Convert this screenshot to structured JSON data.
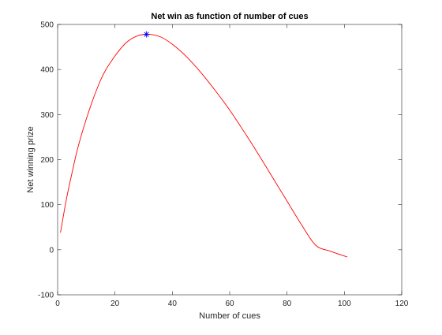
{
  "chart_data": {
    "type": "line",
    "title": "Net win as function of number of cues",
    "xlabel": "Number of cues",
    "ylabel": "Net winning prize",
    "xlim": [
      0,
      120
    ],
    "ylim": [
      -100,
      500
    ],
    "xticks": [
      0,
      20,
      40,
      60,
      80,
      100,
      120
    ],
    "yticks": [
      -100,
      0,
      100,
      200,
      300,
      400,
      500
    ],
    "xtick_labels": [
      "0",
      "20",
      "40",
      "60",
      "80",
      "100",
      "120"
    ],
    "ytick_labels": [
      "-100",
      "0",
      "100",
      "200",
      "300",
      "400",
      "500"
    ],
    "grid": false,
    "series": [
      {
        "color": "#ff0000",
        "x": [
          1,
          3,
          5,
          7,
          10,
          13,
          16,
          20,
          24,
          28,
          32,
          36,
          40,
          45,
          50,
          55,
          60,
          65,
          70,
          75,
          80,
          85,
          90,
          95,
          101
        ],
        "y": [
          38,
          110,
          170,
          225,
          290,
          345,
          390,
          430,
          460,
          475,
          478,
          472,
          456,
          428,
          393,
          353,
          310,
          262,
          212,
          160,
          108,
          56,
          10,
          -3,
          -16
        ]
      }
    ],
    "marker": {
      "x": 31,
      "y": 478,
      "symbol": "*",
      "color": "#0000ff"
    }
  }
}
